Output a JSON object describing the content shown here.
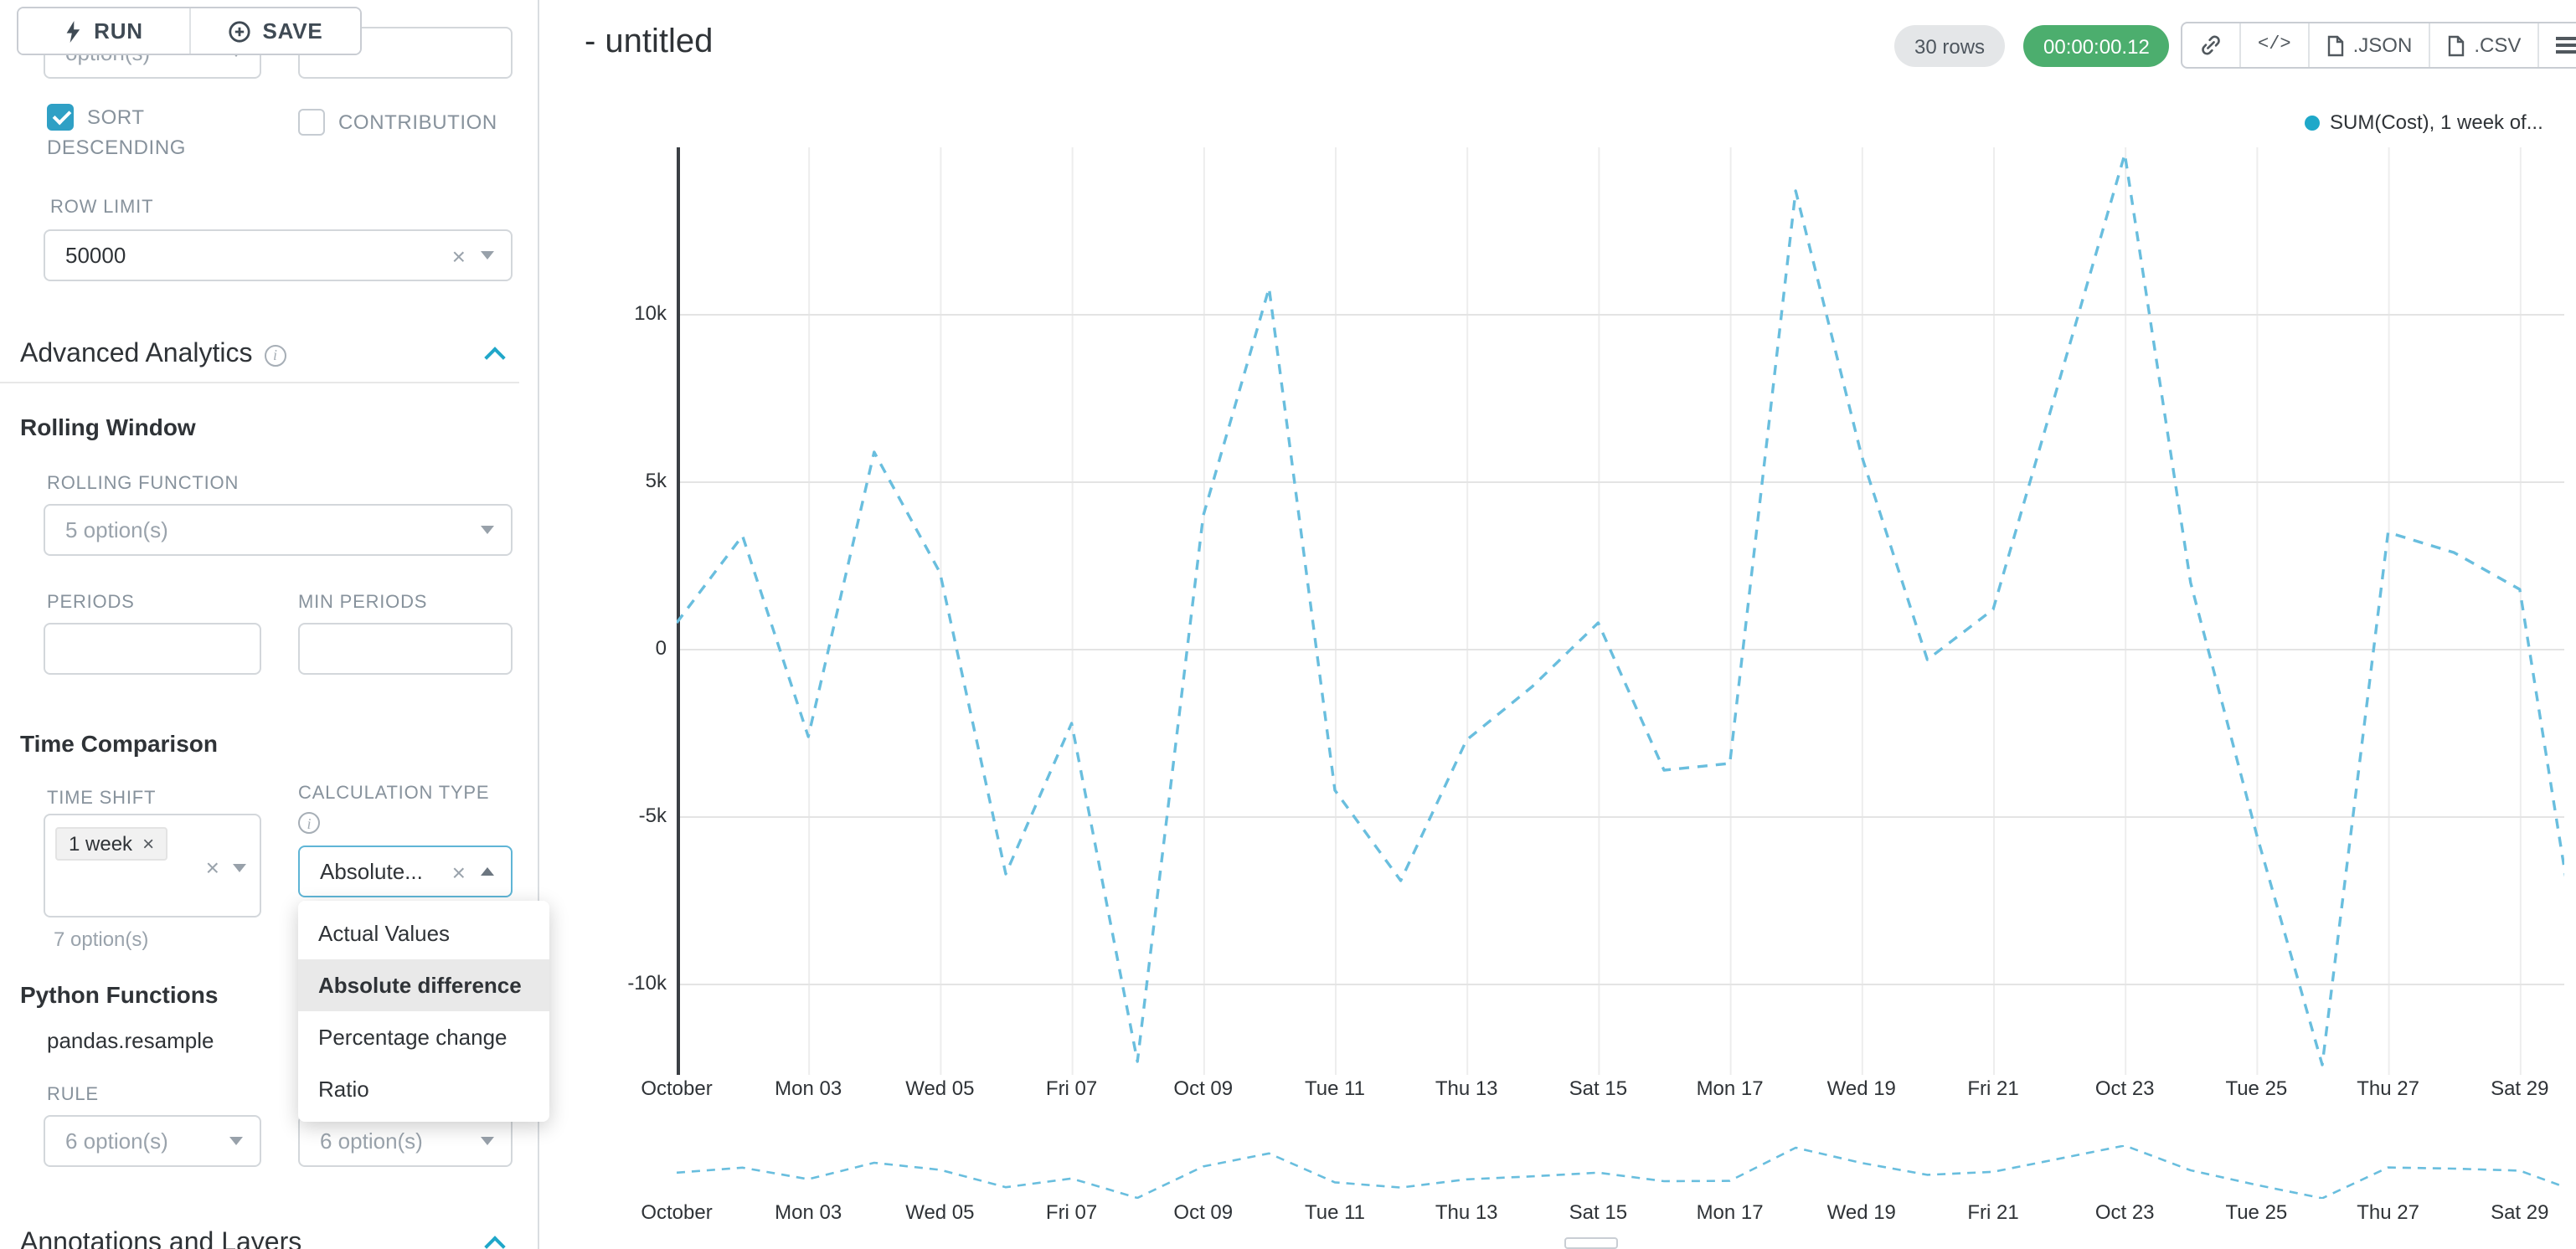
{
  "colors": {
    "accent": "#20a7c9",
    "line": "#69bede",
    "legend_dot": "#1fa8c9",
    "timer_badge_bg": "#4cae6e",
    "rows_badge_bg": "#e4e6e8",
    "selected_option_bg": "#e9e9e9"
  },
  "icons": {
    "clear": "×"
  },
  "toolbar": {
    "run_label": "RUN",
    "save_label": "SAVE"
  },
  "sidebar": {
    "top_truncated": {
      "select_value": "option(s)"
    },
    "sort_descending": {
      "label": "SORT DESCENDING",
      "checked": true
    },
    "contribution": {
      "label": "CONTRIBUTION",
      "checked": false
    },
    "row_limit": {
      "label": "ROW LIMIT",
      "value": "50000"
    },
    "advanced_analytics": {
      "title": "Advanced Analytics"
    },
    "rolling_window": {
      "title": "Rolling Window",
      "rolling_function_label": "ROLLING FUNCTION",
      "rolling_function_value": "5 option(s)",
      "periods_label": "PERIODS",
      "min_periods_label": "MIN PERIODS"
    },
    "time_comparison": {
      "title": "Time Comparison",
      "time_shift_label": "TIME SHIFT",
      "time_shift_tag": "1 week",
      "time_shift_helper": "7 option(s)",
      "calculation_type_label": "CALCULATION TYPE",
      "calculation_type_value": "Absolute...",
      "options": [
        "Actual Values",
        "Absolute difference",
        "Percentage change",
        "Ratio"
      ],
      "selected_option": "Absolute difference"
    },
    "python_functions": {
      "title": "Python Functions",
      "subtitle": "pandas.resample",
      "rule_label": "RULE",
      "rule_value": "6 option(s)",
      "second_value": "6 option(s)"
    },
    "annotations": {
      "title": "Annotations and Layers"
    }
  },
  "header": {
    "title": "- untitled",
    "rows_badge": "30 rows",
    "timer_badge": "00:00:00.12",
    "code_icon_label": "</>",
    "json_label": ".JSON",
    "csv_label": ".CSV"
  },
  "chart_data": {
    "type": "line",
    "title": "",
    "legend": [
      {
        "name": "SUM(Cost), 1 week of...",
        "color": "#1fa8c9"
      }
    ],
    "legend_position": "top-right",
    "grid": true,
    "x_tick_labels": [
      "October",
      "Mon 03",
      "Wed 05",
      "Fri 07",
      "Oct 09",
      "Tue 11",
      "Thu 13",
      "Sat 15",
      "Mon 17",
      "Wed 19",
      "Fri 21",
      "Oct 23",
      "Tue 25",
      "Thu 27",
      "Sat 29"
    ],
    "y_tick_labels": [
      "10k",
      "5k",
      "0",
      "-5k",
      "-10k"
    ],
    "y_tick_values": [
      10000,
      5000,
      0,
      -5000,
      -10000
    ],
    "ylim": [
      -12700,
      15000
    ],
    "x_days": [
      1,
      2,
      3,
      4,
      5,
      6,
      7,
      8,
      9,
      10,
      11,
      12,
      13,
      14,
      15,
      16,
      17,
      18,
      19,
      20,
      21,
      22,
      23,
      24,
      25,
      26,
      27,
      28,
      29,
      30
    ],
    "series": [
      {
        "name": "SUM(Cost), 1 week offset",
        "style": "dashed",
        "color": "#69bede",
        "values": [
          800,
          3400,
          -2600,
          5900,
          2300,
          -6700,
          -2200,
          -12300,
          4000,
          10800,
          -4200,
          -6900,
          -2700,
          -1100,
          800,
          -3600,
          -3400,
          13700,
          5800,
          -300,
          1200,
          8000,
          14800,
          2000,
          -5500,
          -12400,
          3500,
          2900,
          1800,
          -10500
        ]
      }
    ],
    "mini_chart": "same series repeated as overview strip below the main chart"
  }
}
